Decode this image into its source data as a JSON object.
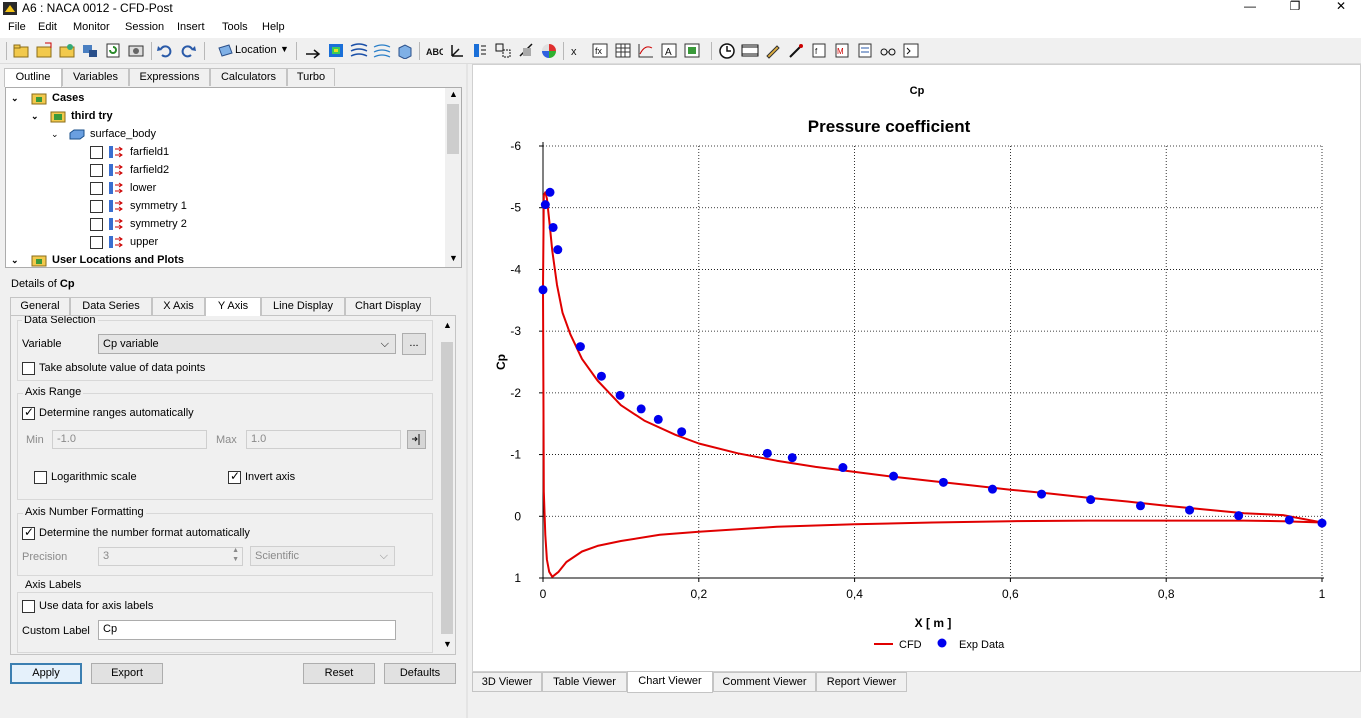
{
  "window": {
    "title": "A6 : NACA 0012 - CFD-Post",
    "minimize": "—",
    "maximize": "❐",
    "close": "✕"
  },
  "menu": [
    "File",
    "Edit",
    "Monitor",
    "Session",
    "Insert",
    "Tools",
    "Help"
  ],
  "toolbar": {
    "location_label": "Location"
  },
  "left_tabs": [
    "Outline",
    "Variables",
    "Expressions",
    "Calculators",
    "Turbo"
  ],
  "tree": {
    "cases": "Cases",
    "case_name": "third try",
    "body": "surface_body",
    "items": [
      "farfield1",
      "farfield2",
      "lower",
      "symmetry 1",
      "symmetry 2",
      "upper"
    ],
    "user_locations": "User Locations and Plots"
  },
  "details": {
    "label_prefix": "Details of ",
    "label_name": "Cp",
    "tabs": [
      "General",
      "Data Series",
      "X Axis",
      "Y Axis",
      "Line Display",
      "Chart Display"
    ]
  },
  "data_selection": {
    "title": "Data Selection",
    "variable_label": "Variable",
    "variable_value": "Cp variable",
    "browse": "...",
    "abs_label": "Take absolute value of data points"
  },
  "axis_range": {
    "title": "Axis Range",
    "auto_label": "Determine ranges automatically",
    "min_label": "Min",
    "min_value": "-1.0",
    "max_label": "Max",
    "max_value": "1.0",
    "log_label": "Logarithmic scale",
    "invert_label": "Invert axis"
  },
  "axis_format": {
    "title": "Axis Number Formatting",
    "auto_label": "Determine the number format automatically",
    "precision_label": "Precision",
    "precision_value": "3",
    "format_value": "Scientific"
  },
  "axis_labels": {
    "title": "Axis Labels",
    "use_data_label": "Use data for axis labels",
    "custom_label": "Custom Label",
    "custom_value": "Cp"
  },
  "buttons": {
    "apply": "Apply",
    "export": "Export",
    "reset": "Reset",
    "defaults": "Defaults"
  },
  "viewer_tabs": [
    "3D Viewer",
    "Table Viewer",
    "Chart Viewer",
    "Comment Viewer",
    "Report Viewer"
  ],
  "chart_data": {
    "type": "line",
    "header": "Cp",
    "title": "Pressure coefficient",
    "xlabel": "X [ m ]",
    "ylabel": "Cp",
    "xlim": [
      0,
      1
    ],
    "ylim": [
      -6,
      1
    ],
    "y_inverted": true,
    "x_ticks": [
      "0",
      "0,2",
      "0,4",
      "0,6",
      "0,8",
      "1"
    ],
    "y_ticks": [
      "-6",
      "-5",
      "-4",
      "-3",
      "-2",
      "-1",
      "0",
      "1"
    ],
    "grid": true,
    "legend_position": "bottom",
    "series": [
      {
        "name": "CFD",
        "kind": "line",
        "color": "#e00000",
        "x": [
          0.0,
          0.001,
          0.003,
          0.005,
          0.008,
          0.012,
          0.018,
          0.025,
          0.035,
          0.05,
          0.07,
          0.1,
          0.13,
          0.17,
          0.2,
          0.25,
          0.3,
          0.35,
          0.4,
          0.45,
          0.5,
          0.55,
          0.6,
          0.65,
          0.7,
          0.75,
          0.8,
          0.85,
          0.9,
          0.95,
          1.0,
          0.95,
          0.9,
          0.85,
          0.8,
          0.7,
          0.6,
          0.5,
          0.4,
          0.3,
          0.2,
          0.15,
          0.1,
          0.07,
          0.05,
          0.03,
          0.02,
          0.012,
          0.008,
          0.005,
          0.003,
          0.001,
          0.0
        ],
        "y": [
          -3.7,
          -5.2,
          -5.25,
          -5.15,
          -4.8,
          -4.3,
          -3.75,
          -3.3,
          -2.95,
          -2.55,
          -2.2,
          -1.8,
          -1.55,
          -1.32,
          -1.18,
          -1.02,
          -0.9,
          -0.8,
          -0.72,
          -0.64,
          -0.57,
          -0.5,
          -0.43,
          -0.37,
          -0.3,
          -0.24,
          -0.17,
          -0.11,
          -0.05,
          -0.02,
          0.1,
          0.08,
          0.07,
          0.07,
          0.07,
          0.07,
          0.08,
          0.1,
          0.13,
          0.17,
          0.25,
          0.3,
          0.4,
          0.48,
          0.57,
          0.74,
          0.9,
          0.98,
          0.9,
          0.7,
          0.3,
          -0.4,
          -3.7
        ]
      },
      {
        "name": "Exp Data",
        "kind": "scatter",
        "color": "#0000ee",
        "x": [
          0.0,
          0.003,
          0.009,
          0.013,
          0.019,
          0.048,
          0.075,
          0.099,
          0.126,
          0.148,
          0.178,
          0.288,
          0.32,
          0.385,
          0.45,
          0.514,
          0.577,
          0.64,
          0.703,
          0.767,
          0.83,
          0.893,
          0.958,
          1.0
        ],
        "y": [
          -3.67,
          -5.05,
          -5.25,
          -4.68,
          -4.32,
          -2.75,
          -2.27,
          -1.96,
          -1.74,
          -1.57,
          -1.37,
          -1.02,
          -0.95,
          -0.79,
          -0.65,
          -0.55,
          -0.44,
          -0.36,
          -0.27,
          -0.17,
          -0.1,
          -0.01,
          0.06,
          0.11
        ]
      }
    ]
  }
}
